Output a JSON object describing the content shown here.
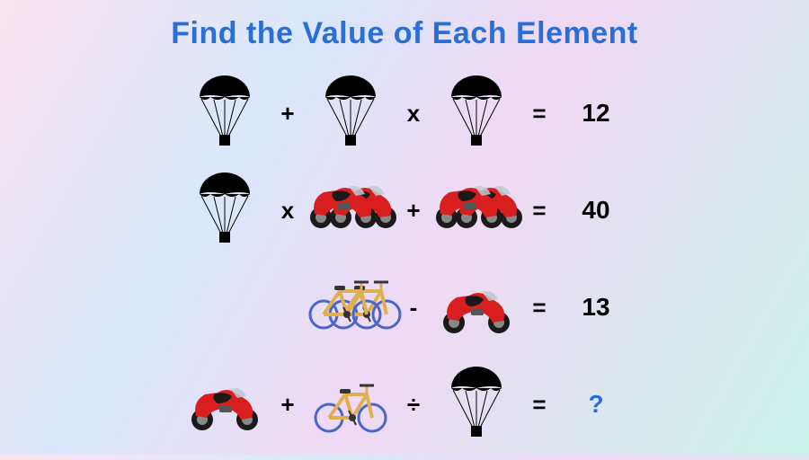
{
  "title": {
    "text": "Find the Value of Each Element",
    "color": "#2a6fd6",
    "fontsize": 34
  },
  "icons": {
    "parachute": {
      "canopy": "#000000",
      "lines": "#000000",
      "box": "#000000"
    },
    "motorcycle": {
      "body": "#d81e1e",
      "seat": "#1a1a1a",
      "wheel": "#1a1a1a",
      "windshield": "#bfc9d1",
      "detail": "#555"
    },
    "bicycle": {
      "frame": "#e0b050",
      "wheel": "#4a66c9",
      "seat": "#333",
      "handle": "#333"
    }
  },
  "ops": {
    "plus": "+",
    "times": "x",
    "minus": "-",
    "div": "÷",
    "eq": "="
  },
  "rows": [
    {
      "c1": {
        "type": "parachute",
        "double": false
      },
      "op1": "plus",
      "c2": {
        "type": "parachute",
        "double": false
      },
      "op2": "times",
      "c3": {
        "type": "parachute",
        "double": false
      },
      "result": "12",
      "result_is_q": false
    },
    {
      "c1": {
        "type": "parachute",
        "double": false
      },
      "op1": "times",
      "c2": {
        "type": "motorcycle",
        "double": true
      },
      "op2": "plus",
      "c3": {
        "type": "motorcycle",
        "double": true
      },
      "result": "40",
      "result_is_q": false
    },
    {
      "c1": null,
      "op1": null,
      "c2": {
        "type": "bicycle",
        "double": true
      },
      "op2": "minus",
      "c3": {
        "type": "motorcycle",
        "double": false
      },
      "result": "13",
      "result_is_q": false
    },
    {
      "c1": {
        "type": "motorcycle",
        "double": false
      },
      "op1": "plus",
      "c2": {
        "type": "bicycle",
        "double": false
      },
      "op2": "div",
      "c3": {
        "type": "parachute",
        "double": false
      },
      "result": "?",
      "result_is_q": true
    }
  ]
}
